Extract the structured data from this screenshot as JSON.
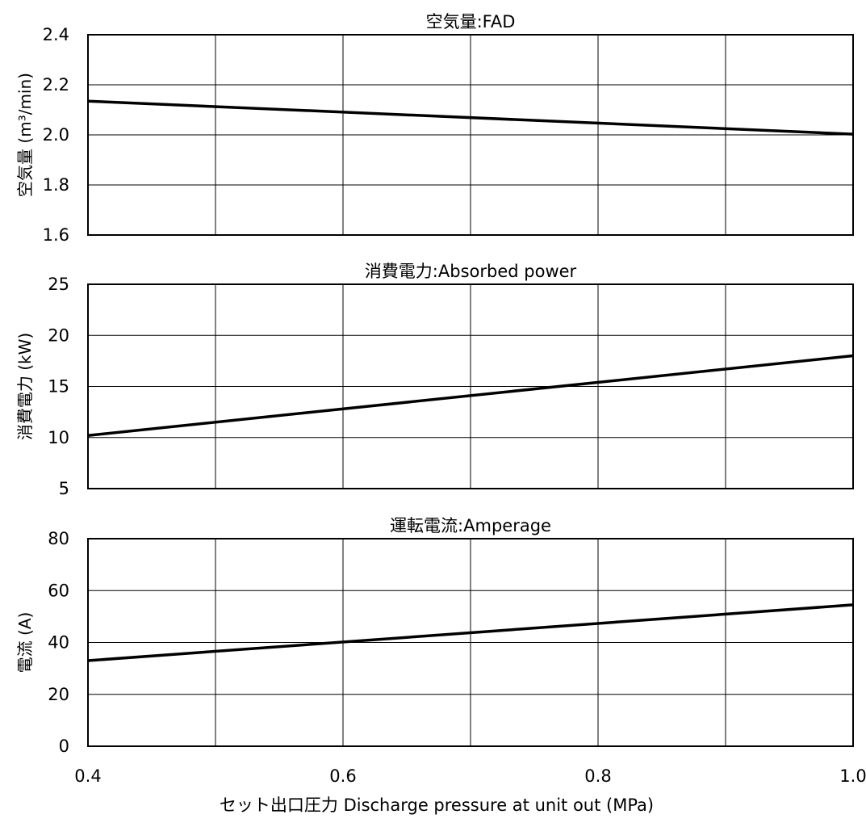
{
  "x_label": "セット出口圧力 Discharge pressure at unit out (MPa)",
  "chart_data": [
    {
      "type": "line",
      "title": "空気量:FAD",
      "xlabel": "",
      "ylabel": "空気量 (m³/min)",
      "xlim": [
        0.4,
        1.0
      ],
      "ylim": [
        1.6,
        2.4
      ],
      "yticks": [
        "1.6",
        "1.8",
        "2.0",
        "2.2",
        "2.4"
      ],
      "grid": true,
      "series": [
        {
          "x": [
            0.4,
            1.0
          ],
          "y": [
            2.135,
            2.003
          ]
        }
      ]
    },
    {
      "type": "line",
      "title": "消費電力:Absorbed power",
      "xlabel": "",
      "ylabel": "消費電力 (kW)",
      "xlim": [
        0.4,
        1.0
      ],
      "ylim": [
        5,
        25
      ],
      "yticks": [
        "5",
        "10",
        "15",
        "20",
        "25"
      ],
      "grid": true,
      "series": [
        {
          "x": [
            0.4,
            1.0
          ],
          "y": [
            10.2,
            18.0
          ]
        }
      ]
    },
    {
      "type": "line",
      "title": "運転電流:Amperage",
      "xlabel": "セット出口圧力 Discharge pressure at unit out (MPa)",
      "ylabel": "電流 (A)",
      "xlim": [
        0.4,
        1.0
      ],
      "ylim": [
        0,
        80
      ],
      "yticks": [
        "0",
        "20",
        "40",
        "60",
        "80"
      ],
      "xticks": [
        "0.4",
        "0.6",
        "0.8",
        "1.0"
      ],
      "grid": true,
      "series": [
        {
          "x": [
            0.4,
            1.0
          ],
          "y": [
            33,
            54.5
          ]
        }
      ]
    }
  ]
}
